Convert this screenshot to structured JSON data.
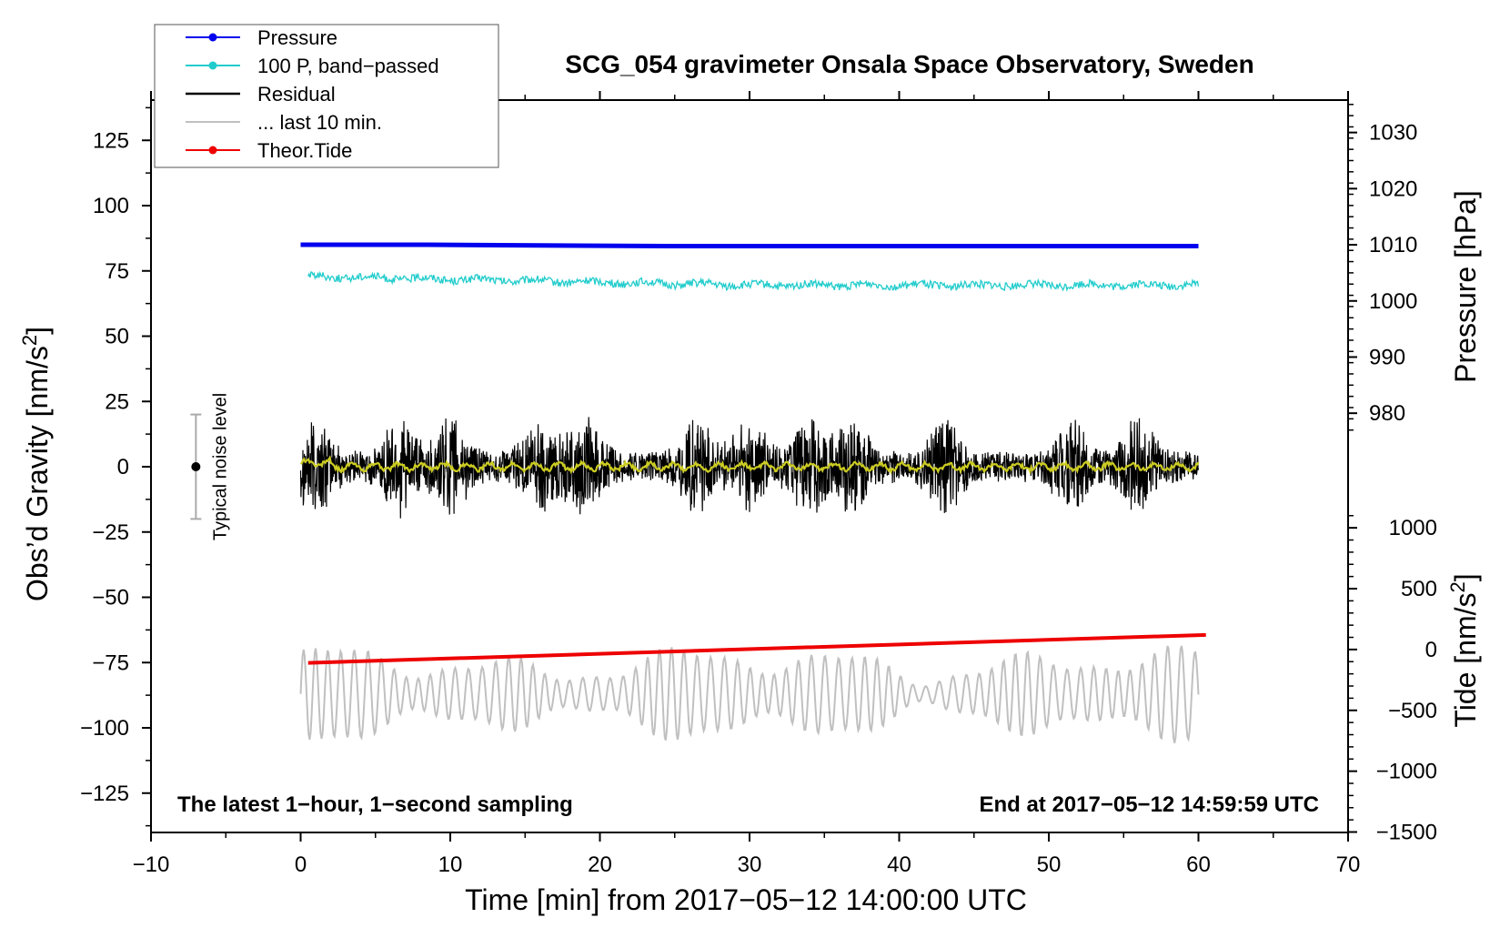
{
  "chart_data": {
    "type": "line",
    "title": "SCG_054 gravimeter Onsala Space Observatory, Sweden",
    "xlabel": "Time [min] from 2017−05−12 14:00:00 UTC",
    "ylabel_left": "Obs’d Gravity [nm/s",
    "ylabel_left_sup": "2",
    "ylabel_left_close": "]",
    "ylabel_right_pressure": "Pressure [hPa]",
    "ylabel_right_tide": "Tide [nm/s",
    "ylabel_right_tide_sup": "2",
    "ylabel_right_tide_close": "]",
    "xlim": [
      -10,
      70
    ],
    "ylim_left": [
      -140,
      140
    ],
    "xticks": [
      "−10",
      "0",
      "10",
      "20",
      "30",
      "40",
      "50",
      "60",
      "70"
    ],
    "xtick_values": [
      -10,
      0,
      10,
      20,
      30,
      40,
      50,
      60,
      70
    ],
    "yticks_left": [
      "125",
      "100",
      "75",
      "50",
      "25",
      "0",
      "−25",
      "−50",
      "−75",
      "−100",
      "−125"
    ],
    "ytick_values_left": [
      125,
      100,
      75,
      50,
      25,
      0,
      -25,
      -50,
      -75,
      -100,
      -125
    ],
    "pressure_axis": {
      "ticks": [
        "1030",
        "1020",
        "1010",
        "1000",
        "990",
        "980"
      ],
      "tick_values": [
        1030,
        1020,
        1010,
        1000,
        990,
        980
      ],
      "gravity_at_1010": 85,
      "gravity_per_hPa": 2.15
    },
    "tide_axis": {
      "ticks": [
        "1000",
        "500",
        "0",
        "−500",
        "−1000",
        "−1500"
      ],
      "tick_values": [
        1000,
        500,
        0,
        -500,
        -1000,
        -1500
      ],
      "gravity_at_0": -70,
      "gravity_per_unit": 0.0466
    },
    "legend": {
      "position": "top-left",
      "entries": [
        {
          "label": "Pressure",
          "color": "#0000ee",
          "marker": true
        },
        {
          "label": "100 P, band−passed",
          "color": "#22cccc",
          "marker": true
        },
        {
          "label": "Residual",
          "color": "#000000",
          "marker": false
        },
        {
          "label": "... last 10 min.",
          "color": "#c0c0c0",
          "marker": false
        },
        {
          "label": "Theor.Tide",
          "color": "#ee0000",
          "marker": true
        }
      ]
    },
    "series": [
      {
        "name": "Pressure",
        "color": "#0000ee",
        "x_range": [
          0,
          60
        ],
        "gravity_level": [
          85,
          85,
          84.5,
          84.5
        ],
        "x_breaks": [
          0,
          8.5,
          24.5,
          60
        ]
      },
      {
        "name": "100 P, band-passed",
        "color": "#22cccc",
        "x_range": [
          0.5,
          60
        ],
        "gravity_level_start": 73,
        "gravity_level_end": 69.5,
        "noise_amplitude": 1.5
      },
      {
        "name": "Residual",
        "color": "#000000",
        "x_range": [
          0,
          60
        ],
        "max_envelope": 26,
        "envelope_peaks_min": [
          1,
          6.5,
          10,
          16,
          19,
          26.5,
          30,
          34,
          37,
          43,
          51.5,
          56
        ]
      },
      {
        "name": "Residual (smoothed)",
        "color": "#cccc22",
        "x_range": [
          0,
          60
        ],
        "amplitude": 2
      },
      {
        "name": "... last 10 min.",
        "color": "#c0c0c0",
        "x_range": [
          0,
          60
        ],
        "center": -87,
        "max_amplitude": 20
      },
      {
        "name": "Theor.Tide",
        "color": "#ee0000",
        "x_range": [
          0.5,
          60.5
        ],
        "tide_start": -110,
        "tide_end": 120
      }
    ],
    "noise_level": {
      "label": "Typical noise level",
      "x": -7,
      "y_center": 0,
      "y_low": -20,
      "y_high": 20
    },
    "annotations": {
      "bottom_left": "The latest 1−hour, 1−second sampling",
      "bottom_right": "End at 2017−05−12 14:59:59 UTC"
    }
  }
}
